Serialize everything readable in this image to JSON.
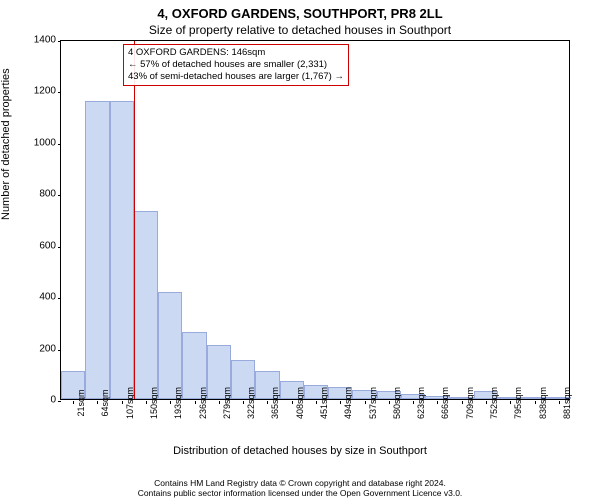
{
  "title_main": "4, OXFORD GARDENS, SOUTHPORT, PR8 2LL",
  "title_sub": "Size of property relative to detached houses in Southport",
  "ylabel": "Number of detached properties",
  "xlabel": "Distribution of detached houses by size in Southport",
  "footer_line1": "Contains HM Land Registry data © Crown copyright and database right 2024.",
  "footer_line2": "Contains public sector information licensed under the Open Government Licence v3.0.",
  "chart": {
    "type": "histogram",
    "ylim": [
      0,
      1400
    ],
    "yticks": [
      0,
      200,
      400,
      600,
      800,
      1000,
      1200,
      1400
    ],
    "xticks": [
      "21sqm",
      "64sqm",
      "107sqm",
      "150sqm",
      "193sqm",
      "236sqm",
      "279sqm",
      "322sqm",
      "365sqm",
      "408sqm",
      "451sqm",
      "494sqm",
      "537sqm",
      "580sqm",
      "623sqm",
      "666sqm",
      "709sqm",
      "752sqm",
      "795sqm",
      "838sqm",
      "881sqm"
    ],
    "values": [
      110,
      1160,
      1160,
      730,
      415,
      260,
      210,
      150,
      110,
      70,
      55,
      45,
      35,
      30,
      18,
      10,
      8,
      30,
      5,
      5,
      5
    ],
    "bar_fill": "#ccd9f2",
    "bar_border": "#99aadd",
    "plot_border": "#000000",
    "background": "#ffffff"
  },
  "reference_line": {
    "color": "#cc0000",
    "bin_index_after": 3
  },
  "annotation": {
    "border_color": "#cc0000",
    "line1": "4 OXFORD GARDENS: 146sqm",
    "line2": "← 57% of detached houses are smaller (2,331)",
    "line3": "43% of semi-detached houses are larger (1,767) →"
  }
}
